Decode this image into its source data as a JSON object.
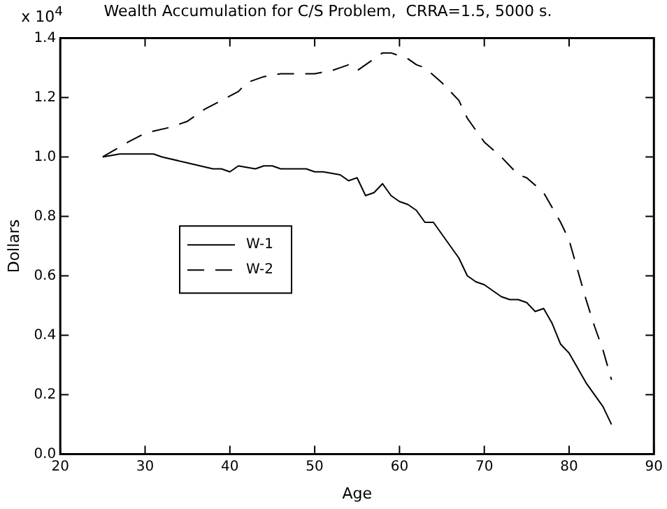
{
  "chart_data": {
    "type": "line",
    "title": "Wealth Accumulation for C/S Problem,  CRRA=1.5, 5000 s.",
    "xlabel": "Age",
    "ylabel": "Dollars",
    "annotations": [
      "x 10$^{4}$"
    ],
    "xlim": [
      20,
      90
    ],
    "xticks": [
      20,
      30,
      40,
      50,
      60,
      70,
      80,
      90
    ],
    "ylim": [
      0,
      1.4
    ],
    "yticks": [
      {
        "value": 0,
        "label": "0.0"
      },
      {
        "value": 0.2,
        "label": "0.2"
      },
      {
        "value": 0.4,
        "label": "0.4"
      },
      {
        "value": 0.6,
        "label": "0.6"
      },
      {
        "value": 0.8,
        "label": "0.8"
      },
      {
        "value": 1,
        "label": "1.0"
      },
      {
        "value": 1.2,
        "label": "1.2"
      },
      {
        "value": 1.4,
        "label": "1.4"
      }
    ],
    "grid": false,
    "legend": "left",
    "marker": "none",
    "series": [
      {
        "name": "W-1",
        "color": "#000000",
        "line_style": "solid",
        "x": [
          25,
          27,
          31,
          32,
          35,
          38,
          39,
          40,
          41,
          43,
          44,
          45,
          46,
          49,
          50,
          51,
          53,
          54,
          55,
          56,
          57,
          58,
          59,
          60,
          61,
          62,
          63,
          64,
          65,
          66,
          67,
          68,
          69,
          70,
          71,
          72,
          73,
          74,
          75,
          76,
          77,
          78,
          79,
          80,
          81,
          82,
          83,
          84,
          85
        ],
        "values": [
          1.0,
          1.01,
          1.01,
          1.0,
          0.98,
          0.96,
          0.96,
          0.95,
          0.97,
          0.96,
          0.97,
          0.97,
          0.96,
          0.96,
          0.95,
          0.95,
          0.94,
          0.92,
          0.93,
          0.87,
          0.88,
          0.91,
          0.87,
          0.85,
          0.84,
          0.82,
          0.78,
          0.78,
          0.74,
          0.7,
          0.66,
          0.6,
          0.58,
          0.57,
          0.55,
          0.53,
          0.52,
          0.52,
          0.51,
          0.48,
          0.49,
          0.44,
          0.37,
          0.34,
          0.29,
          0.24,
          0.2,
          0.16,
          0.1
        ]
      },
      {
        "name": "W-2",
        "color": "#000000",
        "line_style": "dashed",
        "x": [
          25,
          28,
          30,
          33,
          35,
          37,
          39,
          41,
          42,
          44,
          46,
          48,
          50,
          52,
          53,
          54,
          55,
          56,
          58,
          59,
          61,
          62,
          63,
          65,
          67,
          68,
          69,
          70,
          72,
          74,
          75,
          77,
          78,
          79,
          80,
          81,
          82,
          83,
          84,
          85
        ],
        "values": [
          1.0,
          1.05,
          1.08,
          1.1,
          1.12,
          1.16,
          1.19,
          1.22,
          1.25,
          1.27,
          1.28,
          1.28,
          1.28,
          1.29,
          1.3,
          1.31,
          1.29,
          1.31,
          1.35,
          1.35,
          1.33,
          1.31,
          1.3,
          1.25,
          1.19,
          1.13,
          1.09,
          1.05,
          1.0,
          0.94,
          0.93,
          0.88,
          0.83,
          0.78,
          0.72,
          0.62,
          0.52,
          0.43,
          0.35,
          0.25
        ]
      }
    ]
  }
}
